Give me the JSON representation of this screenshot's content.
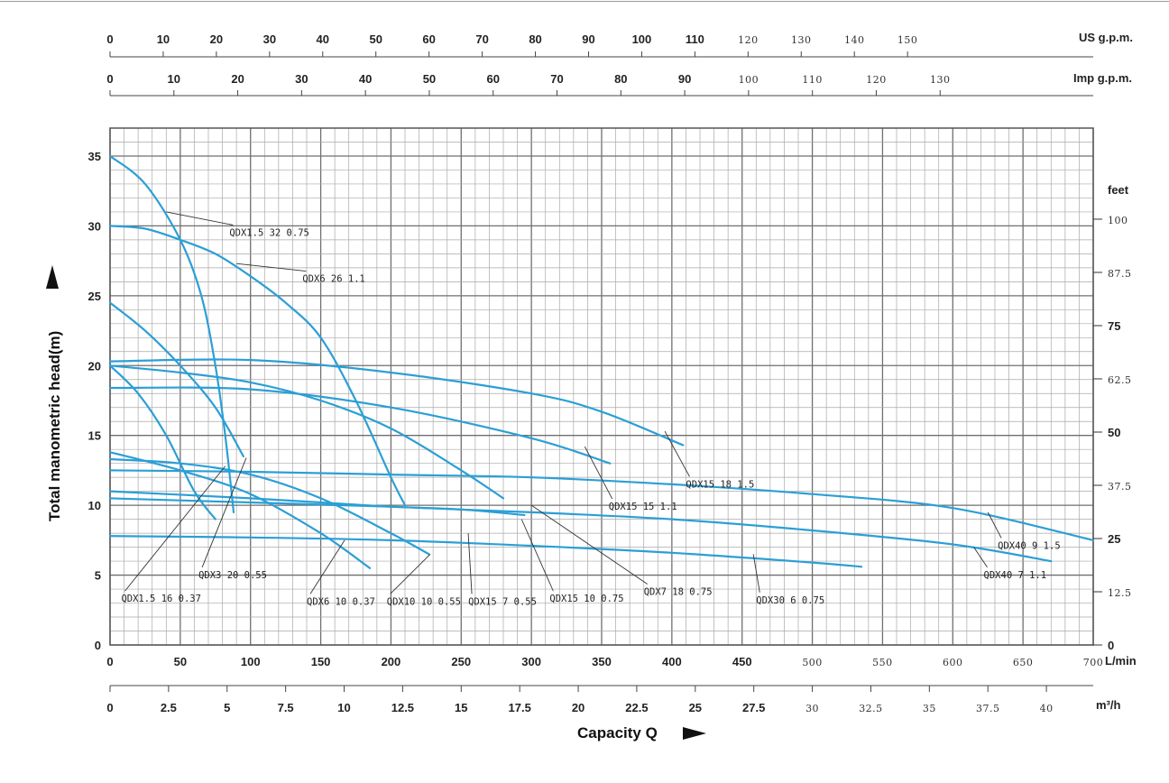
{
  "chart_data": {
    "type": "line",
    "xlabel": "Capacity Q",
    "ylabel": "Total manometric head(m)",
    "right_label": "feet",
    "x_unit": "L/min",
    "x2_unit": "m³/h",
    "top1_unit": "US g.p.m.",
    "top2_unit": "Imp g.p.m.",
    "xlim": [
      0,
      700
    ],
    "ylim": [
      0,
      37
    ],
    "grid": true,
    "x_ticks": [
      {
        "v": 0,
        "t": "0"
      },
      {
        "v": 50,
        "t": "50"
      },
      {
        "v": 100,
        "t": "100"
      },
      {
        "v": 150,
        "t": "150"
      },
      {
        "v": 200,
        "t": "200"
      },
      {
        "v": 250,
        "t": "250"
      },
      {
        "v": 300,
        "t": "300"
      },
      {
        "v": 350,
        "t": "350"
      },
      {
        "v": 400,
        "t": "400"
      },
      {
        "v": 450,
        "t": "450"
      },
      {
        "v": 500,
        "t": "500"
      },
      {
        "v": 550,
        "t": "550"
      },
      {
        "v": 600,
        "t": "600"
      },
      {
        "v": 650,
        "t": "650"
      },
      {
        "v": 700,
        "t": "700"
      }
    ],
    "y_ticks": [
      {
        "v": 0,
        "t": "0"
      },
      {
        "v": 5,
        "t": "5"
      },
      {
        "v": 10,
        "t": "10"
      },
      {
        "v": 15,
        "t": "15"
      },
      {
        "v": 20,
        "t": "20"
      },
      {
        "v": 25,
        "t": "25"
      },
      {
        "v": 30,
        "t": "30"
      },
      {
        "v": 35,
        "t": "35"
      }
    ],
    "feet_ticks": [
      {
        "v": 0,
        "t": "0"
      },
      {
        "v": 12.5,
        "t": "12.5"
      },
      {
        "v": 25,
        "t": "25"
      },
      {
        "v": 37.5,
        "t": "37.5"
      },
      {
        "v": 50,
        "t": "50"
      },
      {
        "v": 62.5,
        "t": "62.5"
      },
      {
        "v": 75,
        "t": "75"
      },
      {
        "v": 87.5,
        "t": "87.5"
      },
      {
        "v": 100,
        "t": "100"
      }
    ],
    "m3h_ticks": [
      {
        "v": 0,
        "t": "0"
      },
      {
        "v": 2.5,
        "t": "2.5"
      },
      {
        "v": 5,
        "t": "5"
      },
      {
        "v": 7.5,
        "t": "7.5"
      },
      {
        "v": 10,
        "t": "10"
      },
      {
        "v": 12.5,
        "t": "12.5"
      },
      {
        "v": 15,
        "t": "15"
      },
      {
        "v": 17.5,
        "t": "17.5"
      },
      {
        "v": 20,
        "t": "20"
      },
      {
        "v": 22.5,
        "t": "22.5"
      },
      {
        "v": 25,
        "t": "25"
      },
      {
        "v": 27.5,
        "t": "27.5"
      },
      {
        "v": 30,
        "t": "30"
      },
      {
        "v": 32.5,
        "t": "32.5"
      },
      {
        "v": 35,
        "t": "35"
      },
      {
        "v": 37.5,
        "t": "37.5"
      },
      {
        "v": 40,
        "t": "40"
      }
    ],
    "usgpm_ticks": [
      {
        "v": 0,
        "t": "0"
      },
      {
        "v": 10,
        "t": "10"
      },
      {
        "v": 20,
        "t": "20"
      },
      {
        "v": 30,
        "t": "30"
      },
      {
        "v": 40,
        "t": "40"
      },
      {
        "v": 50,
        "t": "50"
      },
      {
        "v": 60,
        "t": "60"
      },
      {
        "v": 70,
        "t": "70"
      },
      {
        "v": 80,
        "t": "80"
      },
      {
        "v": 90,
        "t": "90"
      },
      {
        "v": 100,
        "t": "100"
      },
      {
        "v": 110,
        "t": "110"
      },
      {
        "v": 120,
        "t": "120"
      },
      {
        "v": 130,
        "t": "130"
      },
      {
        "v": 140,
        "t": "140"
      },
      {
        "v": 150,
        "t": "150"
      }
    ],
    "impgpm_ticks": [
      {
        "v": 0,
        "t": "0"
      },
      {
        "v": 10,
        "t": "10"
      },
      {
        "v": 20,
        "t": "20"
      },
      {
        "v": 30,
        "t": "30"
      },
      {
        "v": 40,
        "t": "40"
      },
      {
        "v": 50,
        "t": "50"
      },
      {
        "v": 60,
        "t": "60"
      },
      {
        "v": 70,
        "t": "70"
      },
      {
        "v": 80,
        "t": "80"
      },
      {
        "v": 90,
        "t": "90"
      },
      {
        "v": 100,
        "t": "100"
      },
      {
        "v": 110,
        "t": "110"
      },
      {
        "v": 120,
        "t": "120"
      },
      {
        "v": 130,
        "t": "130"
      }
    ],
    "series": [
      {
        "name": "QDX1.5 32 0.75",
        "x": [
          0,
          25,
          50,
          65,
          75,
          82,
          88
        ],
        "y": [
          35,
          33,
          29,
          25,
          20,
          15,
          9.5
        ]
      },
      {
        "name": "QDX6 26 1.1",
        "x": [
          0,
          25,
          50,
          75,
          100,
          125,
          150,
          175,
          200,
          210
        ],
        "y": [
          30,
          29.8,
          29,
          28,
          26.4,
          24.5,
          22,
          17.5,
          12,
          10
        ]
      },
      {
        "name": "QDX3 20 0.55",
        "x": [
          0,
          25,
          50,
          75,
          95
        ],
        "y": [
          24.5,
          22.5,
          20,
          17,
          13.5
        ]
      },
      {
        "name": "QDX1.5 16 0.37",
        "x": [
          0,
          20,
          40,
          60,
          75
        ],
        "y": [
          20,
          18,
          15,
          11,
          9
        ]
      },
      {
        "name": "QDX6 10 0.37",
        "x": [
          0,
          50,
          100,
          150,
          185
        ],
        "y": [
          13.8,
          12.5,
          10.8,
          8,
          5.5
        ]
      },
      {
        "name": "QDX10 10 0.55",
        "x": [
          0,
          50,
          100,
          150,
          200,
          227
        ],
        "y": [
          13.3,
          13,
          12.2,
          10.5,
          8,
          6.5
        ]
      },
      {
        "name": "QDX15 7 0.55",
        "x": [
          0,
          100,
          200,
          300,
          400,
          500,
          535
        ],
        "y": [
          7.8,
          7.7,
          7.5,
          7.1,
          6.6,
          5.9,
          5.6
        ]
      },
      {
        "name": "QDX15 10 0.75",
        "x": [
          0,
          100,
          150,
          200,
          250,
          295
        ],
        "y": [
          11,
          10.5,
          10.2,
          9.9,
          9.7,
          9.3
        ]
      },
      {
        "name": "QDX7 18 0.75",
        "x": [
          0,
          50,
          100,
          150,
          200,
          250,
          280
        ],
        "y": [
          20,
          19.5,
          18.8,
          17.5,
          15.5,
          12.5,
          10.5
        ]
      },
      {
        "name": "QDX15 15 1.1",
        "x": [
          0,
          100,
          200,
          300,
          356
        ],
        "y": [
          18.4,
          18.3,
          17,
          14.8,
          13
        ]
      },
      {
        "name": "QDX15 18 1.5",
        "x": [
          0,
          100,
          200,
          300,
          350,
          408
        ],
        "y": [
          20.3,
          20.4,
          19.5,
          18,
          16.7,
          14.3
        ]
      },
      {
        "name": "QDX30 6 0.75",
        "x": [
          0,
          100,
          200,
          300,
          400,
          500,
          600,
          670
        ],
        "y": [
          10.5,
          10.2,
          9.9,
          9.5,
          9,
          8.2,
          7.2,
          6
        ]
      },
      {
        "name": "QDX40 9 1.5",
        "x": [
          0,
          100,
          200,
          300,
          400,
          500,
          600,
          700
        ],
        "y": [
          12.5,
          12.4,
          12.2,
          12,
          11.5,
          10.8,
          9.8,
          7.5
        ]
      },
      {
        "name": "QDX40 7 1.1",
        "x": [],
        "y": []
      }
    ],
    "annotations": [
      {
        "text": "QDX1.5 32 0.75",
        "x": 40,
        "y": 31,
        "lx": 85,
        "ly": 29.8
      },
      {
        "text": "QDX6 26 1.1",
        "x": 90,
        "y": 27.3,
        "lx": 137,
        "ly": 26.5
      },
      {
        "text": "QDX15 18 1.5",
        "x": 395,
        "y": 15.3,
        "lx": 410,
        "ly": 11.8
      },
      {
        "text": "QDX15 15 1.1",
        "x": 338,
        "y": 14.2,
        "lx": 355,
        "ly": 10.2
      },
      {
        "text": "QDX40 9 1.5",
        "x": 625,
        "y": 9.5,
        "lx": 632,
        "ly": 7.4
      },
      {
        "text": "QDX40 7 1.1",
        "x": 615,
        "y": 7,
        "lx": 622,
        "ly": 5.3
      },
      {
        "text": "QDX3 20 0.55",
        "x": 97,
        "y": 13.4,
        "lx": 63,
        "ly": 5.3
      },
      {
        "text": "QDX1.5 16 0.37",
        "x": 82,
        "y": 12.8,
        "lx": 8,
        "ly": 3.6
      },
      {
        "text": "QDX6 10 0.37",
        "x": 167,
        "y": 7.5,
        "lx": 140,
        "ly": 3.4
      },
      {
        "text": "QDX10 10 0.55",
        "x": 228,
        "y": 6.5,
        "lx": 197,
        "ly": 3.4
      },
      {
        "text": "QDX15 7 0.55",
        "x": 255,
        "y": 8,
        "lx": 255,
        "ly": 3.4
      },
      {
        "text": "QDX15 10 0.75",
        "x": 293,
        "y": 9,
        "lx": 313,
        "ly": 3.6
      },
      {
        "text": "QDX7 18 0.75",
        "x": 300,
        "y": 10,
        "lx": 380,
        "ly": 4.1
      },
      {
        "text": "QDX30 6 0.75",
        "x": 458,
        "y": 6.5,
        "lx": 460,
        "ly": 3.5
      }
    ]
  },
  "colors": {
    "curve": "#2b9fd6",
    "grid_major": "#6f6f6f",
    "grid_minor": "#a9a9a9",
    "text": "#222222",
    "leader": "#333333"
  }
}
